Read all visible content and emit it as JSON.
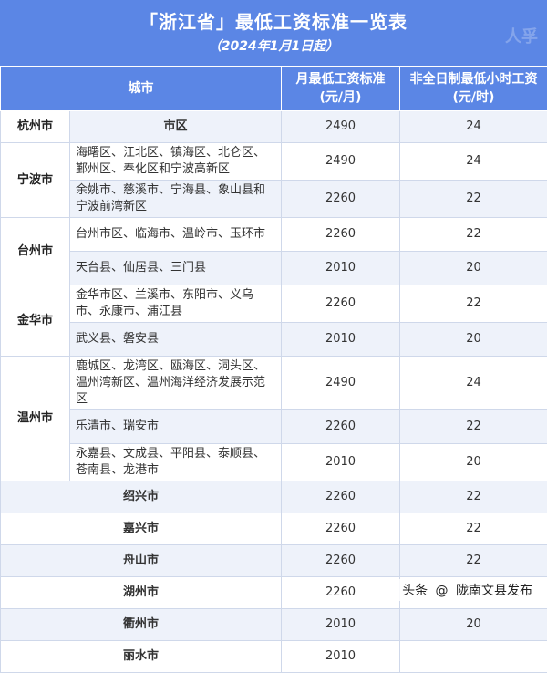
{
  "header": {
    "title": "「浙江省」最低工资标准一览表",
    "subtitle": "（2024年1月1日起）",
    "watermark": "人孚"
  },
  "table": {
    "headers": [
      "城市",
      "月最低工资标准\n(元/月)",
      "非全日制最低小时工资\n(元/时)"
    ],
    "header_col2": "月最低工资标准",
    "header_col2_unit": "(元/月)",
    "header_col3": "非全日制最低小时工资",
    "header_col3_unit": "(元/时)",
    "cities": {
      "hangzhou": "杭州市",
      "ningbo": "宁波市",
      "taizhou": "台州市",
      "jinhua": "金华市",
      "wenzhou": "温州市"
    },
    "rows": [
      {
        "district": "市区",
        "monthly": "2490",
        "hourly": "24"
      },
      {
        "district": "海曙区、江北区、镇海区、北仑区、鄞州区、奉化区和宁波高新区",
        "monthly": "2490",
        "hourly": "24"
      },
      {
        "district": "余姚市、慈溪市、宁海县、象山县和宁波前湾新区",
        "monthly": "2260",
        "hourly": "22"
      },
      {
        "district": "台州市区、临海市、温岭市、玉环市",
        "monthly": "2260",
        "hourly": "22"
      },
      {
        "district": "天台县、仙居县、三门县",
        "monthly": "2010",
        "hourly": "20"
      },
      {
        "district": "金华市区、兰溪市、东阳市、义乌市、永康市、浦江县",
        "monthly": "2260",
        "hourly": "22"
      },
      {
        "district": "武义县、磐安县",
        "monthly": "2010",
        "hourly": "20"
      },
      {
        "district": "鹿城区、龙湾区、瓯海区、洞头区、温州湾新区、温州海洋经济发展示范区",
        "monthly": "2490",
        "hourly": "24"
      },
      {
        "district": "乐清市、瑞安市",
        "monthly": "2260",
        "hourly": "22"
      },
      {
        "district": "永嘉县、文成县、平阳县、泰顺县、苍南县、龙港市",
        "monthly": "2010",
        "hourly": "20"
      }
    ],
    "single_cities": [
      {
        "city": "绍兴市",
        "monthly": "2260",
        "hourly": "22"
      },
      {
        "city": "嘉兴市",
        "monthly": "2260",
        "hourly": "22"
      },
      {
        "city": "舟山市",
        "monthly": "2260",
        "hourly": "22"
      },
      {
        "city": "湖州市",
        "monthly": "2260",
        "hourly": "22"
      },
      {
        "city": "衢州市",
        "monthly": "2010",
        "hourly": "20"
      },
      {
        "city": "丽水市",
        "monthly": "2010",
        "hourly": ""
      }
    ]
  },
  "footer": {
    "prefix": "头条",
    "source": "陇南文县发布"
  }
}
